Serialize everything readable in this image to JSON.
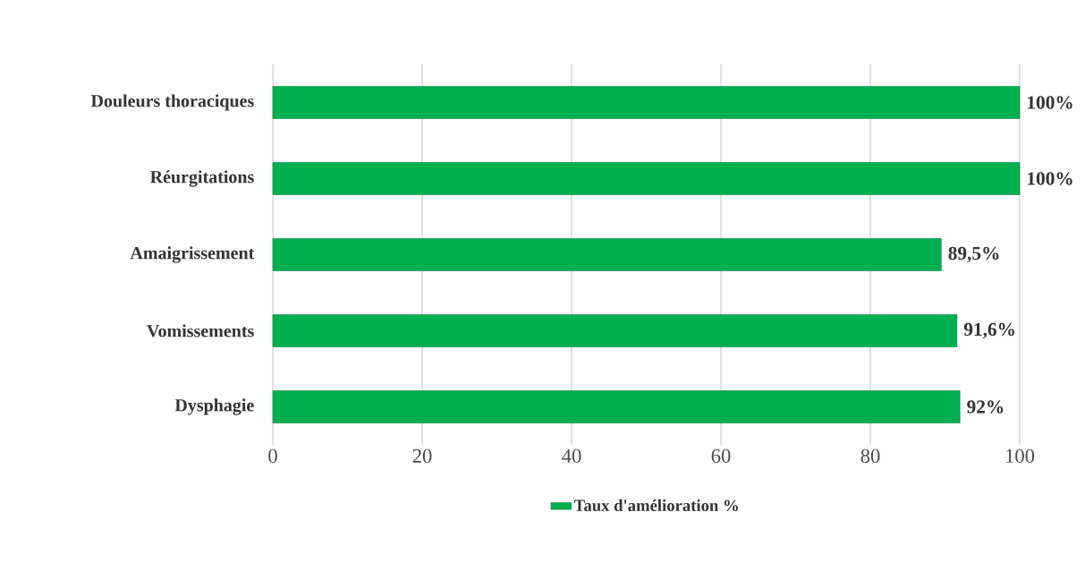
{
  "chart_data": {
    "type": "bar",
    "orientation": "horizontal",
    "categories": [
      "Douleurs thoraciques",
      "Réurgitations",
      "Amaigrissement",
      "Vomissements",
      "Dysphagie"
    ],
    "series": [
      {
        "name": "Taux d'amélioration %",
        "color": "#00b050",
        "values": [
          100,
          100,
          89.5,
          91.6,
          92
        ],
        "value_labels": [
          "100%",
          "100%",
          "89,5%",
          "91,6%",
          "92%"
        ]
      }
    ],
    "xlim": [
      0,
      100
    ],
    "xticks": [
      0,
      20,
      40,
      60,
      80,
      100
    ],
    "grid": "x",
    "legend": "bottom"
  }
}
